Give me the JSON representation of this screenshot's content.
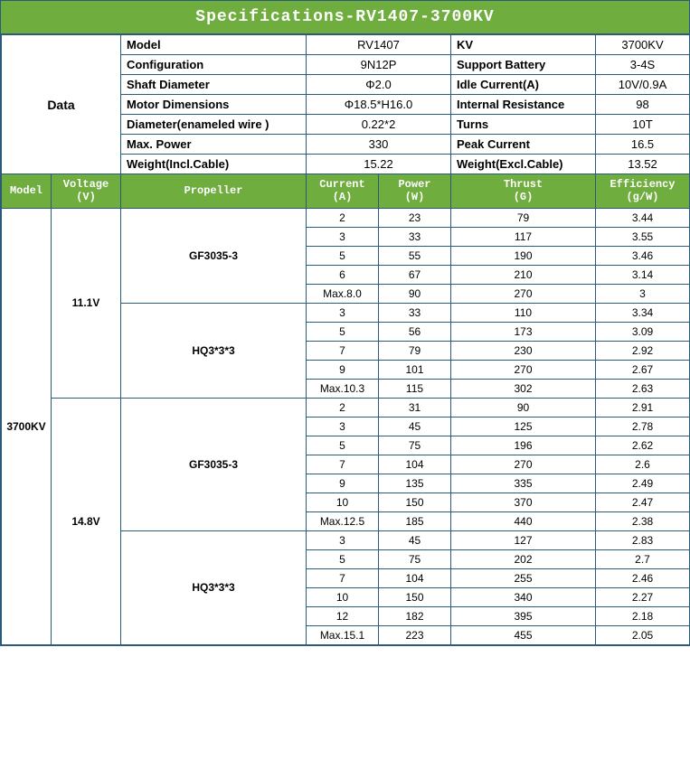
{
  "title": "Specifications-RV1407-3700KV",
  "data_label": "Data",
  "specs": [
    {
      "l1": "Model",
      "v1": "RV1407",
      "l2": "KV",
      "v2": "3700KV"
    },
    {
      "l1": "Configuration",
      "v1": "9N12P",
      "l2": "Support Battery",
      "v2": "3-4S"
    },
    {
      "l1": "Shaft Diameter",
      "v1": "Φ2.0",
      "l2": "Idle Current(A)",
      "v2": "10V/0.9A"
    },
    {
      "l1": "Motor Dimensions",
      "v1": "Φ18.5*H16.0",
      "l2": "Internal Resistance",
      "v2": "98"
    },
    {
      "l1": "Diameter(enameled wire )",
      "v1": "0.22*2",
      "l2": "Turns",
      "v2": "10T"
    },
    {
      "l1": "Max. Power",
      "v1": "330",
      "l2": "Peak Current",
      "v2": "16.5"
    },
    {
      "l1": "Weight(Incl.Cable)",
      "v1": "15.22",
      "l2": "Weight(Excl.Cable)",
      "v2": "13.52"
    }
  ],
  "perf_headers": {
    "model": "Model",
    "voltage": "Voltage\n(V)",
    "propeller": "Propeller",
    "current": "Current\n(A)",
    "power": "Power\n(W)",
    "thrust": "Thrust\n(G)",
    "efficiency": "Efficiency\n(g/W)"
  },
  "model": "3700KV",
  "voltages": [
    {
      "voltage": "11.1V",
      "propellers": [
        {
          "name": "GF3035-3",
          "rows": [
            {
              "c": "2",
              "p": "23",
              "t": "79",
              "e": "3.44"
            },
            {
              "c": "3",
              "p": "33",
              "t": "117",
              "e": "3.55"
            },
            {
              "c": "5",
              "p": "55",
              "t": "190",
              "e": "3.46"
            },
            {
              "c": "6",
              "p": "67",
              "t": "210",
              "e": "3.14"
            },
            {
              "c": "Max.8.0",
              "p": "90",
              "t": "270",
              "e": "3"
            }
          ]
        },
        {
          "name": "HQ3*3*3",
          "rows": [
            {
              "c": "3",
              "p": "33",
              "t": "110",
              "e": "3.34"
            },
            {
              "c": "5",
              "p": "56",
              "t": "173",
              "e": "3.09"
            },
            {
              "c": "7",
              "p": "79",
              "t": "230",
              "e": "2.92"
            },
            {
              "c": "9",
              "p": "101",
              "t": "270",
              "e": "2.67"
            },
            {
              "c": "Max.10.3",
              "p": "115",
              "t": "302",
              "e": "2.63"
            }
          ]
        }
      ]
    },
    {
      "voltage": "14.8V",
      "propellers": [
        {
          "name": "GF3035-3",
          "rows": [
            {
              "c": "2",
              "p": "31",
              "t": "90",
              "e": "2.91"
            },
            {
              "c": "3",
              "p": "45",
              "t": "125",
              "e": "2.78"
            },
            {
              "c": "5",
              "p": "75",
              "t": "196",
              "e": "2.62"
            },
            {
              "c": "7",
              "p": "104",
              "t": "270",
              "e": "2.6"
            },
            {
              "c": "9",
              "p": "135",
              "t": "335",
              "e": "2.49"
            },
            {
              "c": "10",
              "p": "150",
              "t": "370",
              "e": "2.47"
            },
            {
              "c": "Max.12.5",
              "p": "185",
              "t": "440",
              "e": "2.38"
            }
          ]
        },
        {
          "name": "HQ3*3*3",
          "rows": [
            {
              "c": "3",
              "p": "45",
              "t": "127",
              "e": "2.83"
            },
            {
              "c": "5",
              "p": "75",
              "t": "202",
              "e": "2.7"
            },
            {
              "c": "7",
              "p": "104",
              "t": "255",
              "e": "2.46"
            },
            {
              "c": "10",
              "p": "150",
              "t": "340",
              "e": "2.27"
            },
            {
              "c": "12",
              "p": "182",
              "t": "395",
              "e": "2.18"
            },
            {
              "c": "Max.15.1",
              "p": "223",
              "t": "455",
              "e": "2.05"
            }
          ]
        }
      ]
    }
  ],
  "colors": {
    "header_bg": "#6fad3e",
    "header_fg": "#ffffff",
    "border": "#2a5c7a"
  },
  "col_widths": {
    "model": 55,
    "voltage": 77,
    "propeller": 205,
    "current": 80,
    "power": 80,
    "thrust": 160,
    "efficiency": 104
  }
}
